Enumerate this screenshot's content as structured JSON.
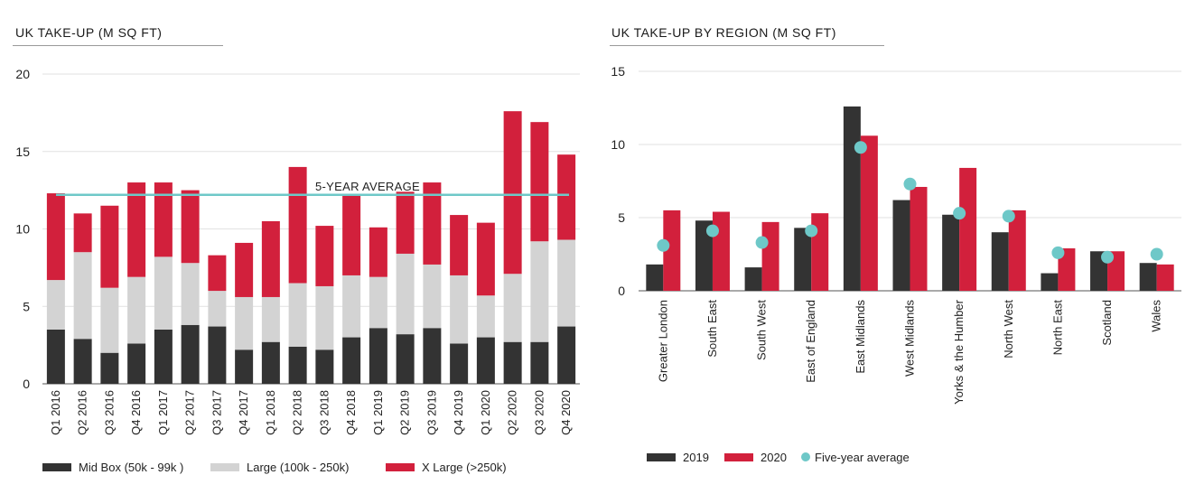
{
  "left_title": "UK TAKE-UP (M SQ FT)",
  "right_title": "UK TAKE-UP BY REGION (M SQ FT)",
  "chart_data": [
    {
      "type": "bar",
      "stacked": true,
      "title": "UK TAKE-UP (M SQ FT)",
      "categories": [
        "Q1 2016",
        "Q2 2016",
        "Q3 2016",
        "Q4 2016",
        "Q1 2017",
        "Q2 2017",
        "Q3 2017",
        "Q4 2017",
        "Q1 2018",
        "Q2 2018",
        "Q3 2018",
        "Q4 2018",
        "Q1 2019",
        "Q2 2019",
        "Q3 2019",
        "Q4 2019",
        "Q1 2020",
        "Q2 2020",
        "Q3 2020",
        "Q4 2020"
      ],
      "series": [
        {
          "name": "Mid Box (50k - 99k )",
          "color": "#333333",
          "values": [
            3.5,
            2.9,
            2.0,
            2.6,
            3.5,
            3.8,
            3.7,
            2.2,
            2.7,
            2.4,
            2.2,
            3.0,
            3.6,
            3.2,
            3.6,
            2.6,
            3.0,
            2.7,
            2.7,
            3.7
          ]
        },
        {
          "name": "Large (100k - 250k)",
          "color": "#d3d3d3",
          "values": [
            3.2,
            5.6,
            4.2,
            4.3,
            4.7,
            4.0,
            2.3,
            3.4,
            2.9,
            4.1,
            4.1,
            4.0,
            3.3,
            5.2,
            4.1,
            4.4,
            2.7,
            4.4,
            6.5,
            5.6
          ]
        },
        {
          "name": "X Large (>250k)",
          "color": "#d2203c",
          "values": [
            5.6,
            2.5,
            5.3,
            6.1,
            4.8,
            4.7,
            2.3,
            3.5,
            4.9,
            7.5,
            3.9,
            5.2,
            3.2,
            4.0,
            5.3,
            3.9,
            4.7,
            10.5,
            7.7,
            5.5
          ]
        }
      ],
      "annotations": [
        {
          "text": "5-YEAR AVERAGE",
          "value": 12.2,
          "color": "#6ec8c8"
        }
      ],
      "ylim": [
        0,
        20
      ],
      "yticks": [
        0,
        5,
        10,
        15,
        20
      ],
      "grid": true,
      "legend_position": "bottom"
    },
    {
      "type": "bar",
      "title": "UK TAKE-UP BY REGION (M SQ FT)",
      "categories": [
        "Greater London",
        "South East",
        "South West",
        "East of England",
        "East Midlands",
        "West Midlands",
        "Yorks & the Humber",
        "North West",
        "North East",
        "Scotland",
        "Wales"
      ],
      "series": [
        {
          "name": "2019",
          "color": "#333333",
          "values": [
            1.8,
            4.8,
            1.6,
            4.3,
            12.6,
            6.2,
            5.2,
            4.0,
            1.2,
            2.7,
            1.9
          ]
        },
        {
          "name": "2020",
          "color": "#d2203c",
          "values": [
            5.5,
            5.4,
            4.7,
            5.3,
            10.6,
            7.1,
            8.4,
            5.5,
            2.9,
            2.7,
            1.8
          ]
        },
        {
          "name": "Five-year average",
          "type": "scatter",
          "color": "#6ec8c8",
          "values": [
            3.1,
            4.1,
            3.3,
            4.1,
            9.8,
            7.3,
            5.3,
            5.1,
            2.6,
            2.3,
            2.5
          ]
        }
      ],
      "ylim": [
        0,
        15
      ],
      "yticks": [
        0,
        5,
        10,
        15
      ],
      "grid": true,
      "legend_position": "bottom"
    }
  ]
}
